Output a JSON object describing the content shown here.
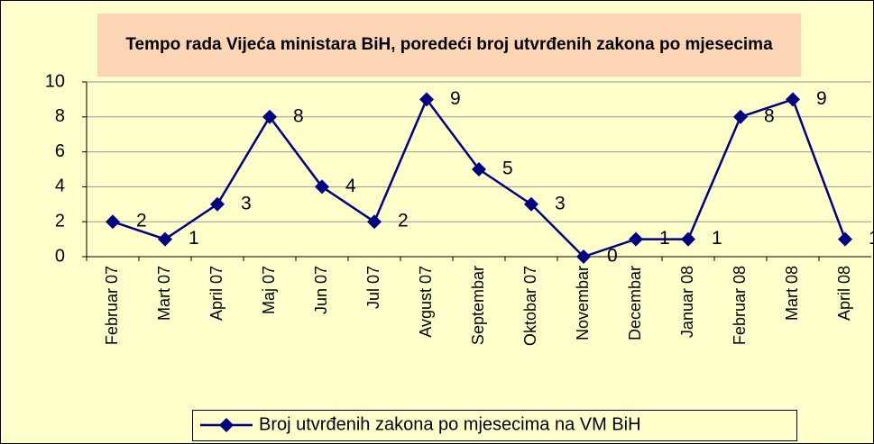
{
  "chart_data": {
    "type": "line",
    "title": "Tempo rada Vijeća ministara BiH, poredeći broj utvrđenih zakona po mjesecima",
    "categories": [
      "Februar 07",
      "Mart 07",
      "April 07",
      "Maj 07",
      "Jun 07",
      "Jul 07",
      "Avgust 07",
      "Septembar",
      "Oktobar 07",
      "Novembar",
      "Decembar",
      "Januar 08",
      "Februar 08",
      "Mart 08",
      "April 08"
    ],
    "series": [
      {
        "name": "Broj utvrđenih zakona po mjesecima na VM BiH",
        "color": "#000080",
        "values": [
          2,
          1,
          3,
          8,
          4,
          2,
          9,
          5,
          3,
          0,
          1,
          1,
          8,
          9,
          1
        ]
      }
    ],
    "ylim": [
      0,
      10
    ],
    "yticks": [
      0,
      2,
      4,
      6,
      8,
      10
    ],
    "grid": true,
    "data_labels": true,
    "legend": "bottom"
  }
}
